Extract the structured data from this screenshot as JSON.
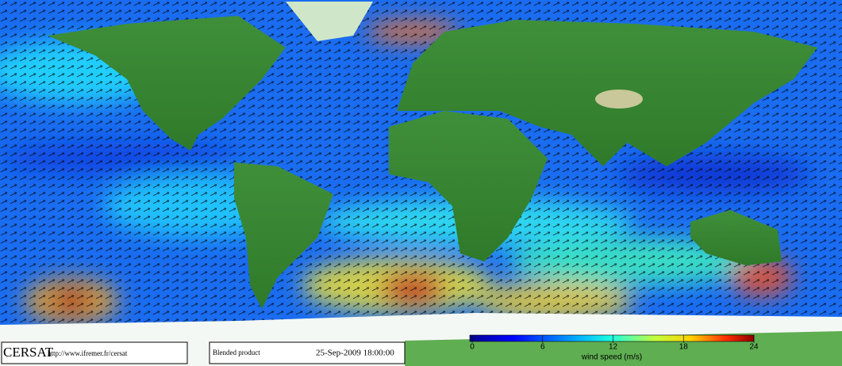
{
  "footer": {
    "logo": "CERSAT",
    "url": "http://www.ifremer.fr/cersat",
    "product": "Blended product",
    "datetime": "25-Sep-2009 18:00:00"
  },
  "colorbar": {
    "label": "wind speed (m/s)",
    "range": [
      0,
      24
    ],
    "ticks": [
      0,
      6,
      12,
      18,
      24
    ]
  }
}
